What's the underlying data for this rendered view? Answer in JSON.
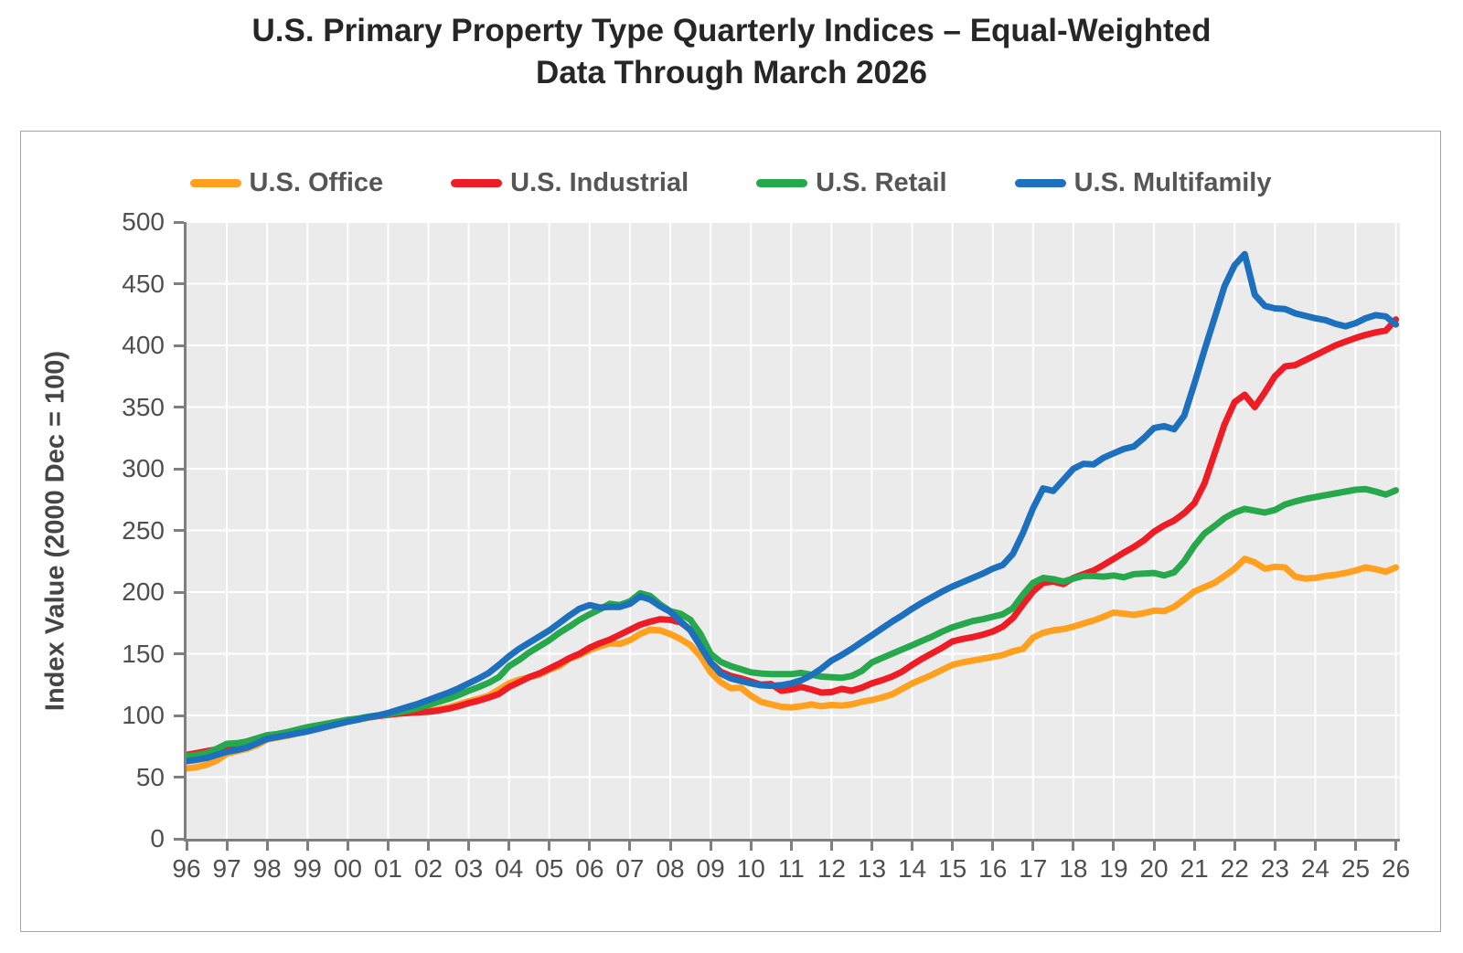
{
  "title": {
    "line1": "U.S. Primary Property Type Quarterly Indices – Equal-Weighted",
    "line2": "Data Through March 2026"
  },
  "y_axis": {
    "title": "Index Value (2000 Dec = 100)",
    "min": 0,
    "max": 500,
    "tick_step": 50,
    "tick_labels": [
      "0",
      "50",
      "100",
      "150",
      "200",
      "250",
      "300",
      "350",
      "400",
      "450",
      "500"
    ]
  },
  "x_axis": {
    "tick_labels": [
      "96",
      "97",
      "98",
      "99",
      "00",
      "01",
      "02",
      "03",
      "04",
      "05",
      "06",
      "07",
      "08",
      "09",
      "10",
      "11",
      "12",
      "13",
      "14",
      "15",
      "16",
      "17",
      "18",
      "19",
      "20",
      "21",
      "22",
      "23",
      "24",
      "25",
      "26"
    ]
  },
  "legend": [
    {
      "label": "U.S. Office",
      "color": "#FFA01E"
    },
    {
      "label": "U.S. Industrial",
      "color": "#EE1C25"
    },
    {
      "label": "U.S. Retail",
      "color": "#27A84D"
    },
    {
      "label": "U.S. Multifamily",
      "color": "#1C70BE"
    }
  ],
  "chart_data": {
    "type": "line",
    "title": "U.S. Primary Property Type Quarterly Indices – Equal-Weighted — Data Through March 2026",
    "xlabel": "",
    "ylabel": "Index Value (2000 Dec = 100)",
    "xlim": [
      1996,
      2026.1
    ],
    "ylim": [
      0,
      500
    ],
    "grid": true,
    "legend_position": "top",
    "plot_background": "#EBEBEB",
    "gridline_color": "#FFFFFF",
    "x_start": 1996,
    "x_step": 0.25,
    "x_unit": "year (quarterly points)",
    "series": [
      {
        "name": "U.S. Office",
        "color": "#FFA01E",
        "values": [
          57,
          58,
          60,
          63.5,
          69,
          71,
          73,
          76,
          80.5,
          82,
          83.5,
          85.5,
          87.5,
          89,
          91,
          93,
          95,
          96.5,
          98,
          99.5,
          100.5,
          101.5,
          102,
          102.5,
          103.5,
          105,
          106.5,
          109,
          111.5,
          113.5,
          116,
          121,
          126,
          129,
          131,
          133,
          137,
          140,
          146,
          149,
          153,
          156,
          158.5,
          158,
          161,
          166,
          169.5,
          169,
          166,
          162,
          157,
          148,
          135,
          127,
          122,
          122.5,
          116,
          111,
          109,
          107,
          106.5,
          107.5,
          109,
          107.5,
          108.5,
          108,
          109,
          111,
          112.5,
          114.5,
          117,
          121.5,
          126,
          129.5,
          133,
          137,
          141,
          143,
          144.5,
          146,
          147.5,
          149,
          152,
          154,
          163,
          167,
          169,
          170,
          172,
          174.5,
          177,
          180,
          183.5,
          182.5,
          181.5,
          183,
          185,
          184.5,
          188,
          194,
          200.5,
          204,
          207.5,
          213,
          219,
          227,
          224,
          219,
          220.5,
          220,
          212.5,
          211,
          211.5,
          213,
          214,
          215.5,
          217.5,
          220,
          218.5,
          216.5,
          220
        ]
      },
      {
        "name": "U.S. Industrial",
        "color": "#EE1C25",
        "values": [
          68,
          69.5,
          71,
          72.5,
          74.5,
          76,
          78,
          80.5,
          83,
          84.5,
          85.5,
          87,
          88.5,
          90,
          91.5,
          93.5,
          95.5,
          97,
          98.5,
          99.5,
          100.5,
          101.5,
          102,
          102.5,
          103,
          104,
          105.5,
          107.5,
          110,
          112,
          114.5,
          117.5,
          123,
          127,
          131,
          134,
          138,
          142,
          146.5,
          150,
          155,
          158.5,
          161.5,
          165.5,
          169.5,
          173.5,
          176,
          178,
          177.5,
          175.5,
          169.5,
          161,
          143,
          135.5,
          132,
          130,
          127.5,
          125,
          125.5,
          120,
          121,
          123,
          121,
          118.5,
          119,
          121.5,
          120,
          122.5,
          126,
          128.5,
          131.5,
          135.5,
          141,
          146,
          150.5,
          155,
          160,
          162,
          163.5,
          165.5,
          168,
          172,
          179,
          190,
          200.5,
          207.5,
          208.5,
          206.5,
          211.5,
          214.5,
          217.5,
          222,
          227,
          232,
          236.5,
          242,
          249,
          254,
          258,
          264,
          272,
          288,
          312,
          336,
          354,
          360,
          350,
          362,
          375,
          383,
          384,
          388,
          392,
          396,
          400,
          403,
          406,
          408.5,
          410.5,
          412,
          421
        ]
      },
      {
        "name": "U.S. Retail",
        "color": "#27A84D",
        "values": [
          67,
          68,
          69.5,
          73,
          77,
          77.5,
          79,
          81.5,
          84,
          85,
          86.5,
          88.5,
          90.5,
          92,
          93.5,
          95,
          96.5,
          97.5,
          99,
          100,
          101,
          102.5,
          104,
          106,
          108.5,
          111,
          113.5,
          116.5,
          120,
          123,
          126.5,
          131,
          140,
          145,
          151,
          156,
          161,
          167,
          172,
          177.5,
          182,
          186,
          190.5,
          189.5,
          192.5,
          199,
          197,
          190,
          184.5,
          182.5,
          177.5,
          166,
          150,
          143.5,
          140,
          137.5,
          135,
          134,
          133.5,
          133.5,
          133.5,
          134.5,
          133,
          131.5,
          131,
          130.5,
          132,
          136,
          143,
          146.5,
          150,
          153.5,
          157,
          160.5,
          164,
          168,
          171.5,
          174,
          176.5,
          178,
          180,
          182,
          187,
          198,
          207.5,
          211.5,
          210.5,
          208.5,
          211,
          213,
          213,
          212.5,
          213.5,
          212,
          214.5,
          215,
          215.5,
          213.5,
          216,
          225,
          237.5,
          247.5,
          253.5,
          260,
          264.5,
          267.5,
          266,
          264.5,
          266.5,
          271,
          273.5,
          275.5,
          277,
          278.5,
          280,
          281.5,
          283,
          283.5,
          281.5,
          279,
          282.5
        ]
      },
      {
        "name": "U.S. Multifamily",
        "color": "#1C70BE",
        "values": [
          63,
          64,
          65.5,
          68,
          70.5,
          72,
          74,
          77.5,
          81,
          82.5,
          84,
          85.5,
          87,
          89,
          91,
          93,
          95,
          96.5,
          98.5,
          100,
          102,
          104.5,
          107,
          109.5,
          112.5,
          115.5,
          118.5,
          122,
          126,
          130,
          134.5,
          141,
          148,
          154,
          159,
          164,
          169,
          175,
          181,
          186.5,
          189.5,
          187.5,
          188,
          188,
          190.5,
          196.5,
          194,
          188.5,
          184,
          176.5,
          169,
          156,
          143,
          134,
          130,
          128,
          126,
          124.5,
          124,
          124.5,
          126,
          128.5,
          132.5,
          138,
          144.5,
          149,
          154,
          159.5,
          165,
          170.5,
          176,
          181,
          186.5,
          191.5,
          196,
          200.5,
          204.5,
          208,
          211.5,
          215,
          219,
          222,
          231,
          248,
          268,
          284,
          282,
          291,
          300,
          304,
          303.5,
          309,
          312.5,
          316,
          318,
          325,
          333,
          334.5,
          332,
          343,
          369,
          396,
          422,
          448,
          465,
          474,
          441,
          432,
          430,
          429.5,
          426,
          424,
          422,
          420.5,
          417.5,
          415.5,
          418,
          422,
          424.5,
          423.5,
          417
        ]
      }
    ]
  }
}
